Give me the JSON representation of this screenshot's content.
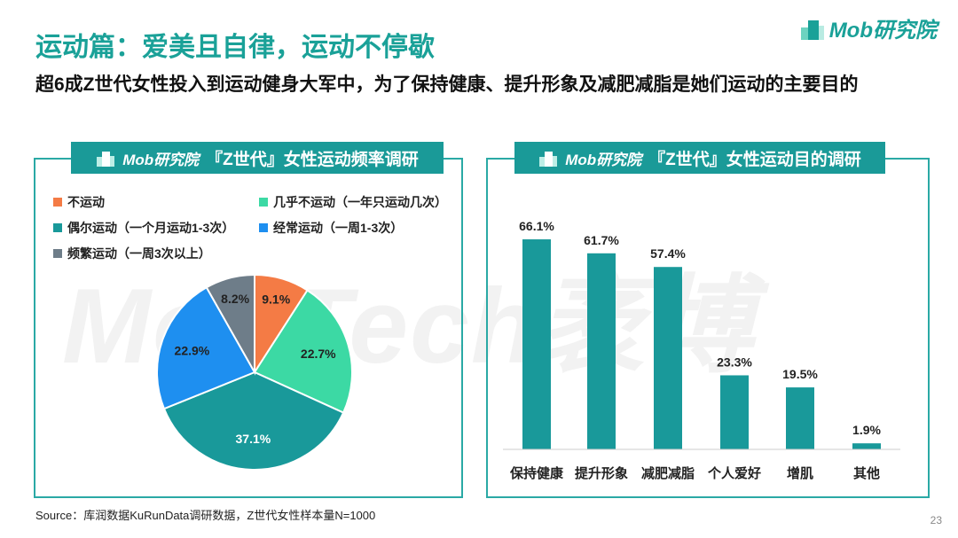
{
  "title": "运动篇：爱美且自律，运动不停歇",
  "subtitle": "超6成Z世代女性投入到运动健身大军中，为了保持健康、提升形象及减肥减脂是她们运动的主要目的",
  "logo": {
    "brand": "Mob研究院"
  },
  "watermark": "MobTech袤博",
  "left_panel": {
    "brand": "Mob研究院",
    "title": "『Z世代』女性运动频率调研"
  },
  "right_panel": {
    "brand": "Mob研究院",
    "title": "『Z世代』女性运动目的调研"
  },
  "source": "Source：库润数据KuRunData调研数据，Z世代女性样本量N=1000",
  "page_number": "23",
  "chart_data": [
    {
      "type": "pie",
      "start": "top",
      "direction": "clockwise",
      "legend_position": "top",
      "slices": [
        {
          "name": "不运动",
          "value": 9.1,
          "label": "9.1%",
          "color": "#f47b45"
        },
        {
          "name": "几乎不运动（一年只运动几次）",
          "value": 22.7,
          "label": "22.7%",
          "color": "#3cd9a4"
        },
        {
          "name": "偶尔运动（一个月运动1-3次）",
          "value": 37.1,
          "label": "37.1%",
          "color": "#19999a"
        },
        {
          "name": "经常运动（一周1-3次）",
          "value": 22.9,
          "label": "22.9%",
          "color": "#1e8ff0"
        },
        {
          "name": "频繁运动（一周3次以上）",
          "value": 8.2,
          "label": "8.2%",
          "color": "#6e7d89"
        }
      ]
    },
    {
      "type": "bar",
      "categories": [
        "保持健康",
        "提升形象",
        "减肥减脂",
        "个人爱好",
        "增肌",
        "其他"
      ],
      "values": [
        66.1,
        61.7,
        57.4,
        23.3,
        19.5,
        1.9
      ],
      "labels": [
        "66.1%",
        "61.7%",
        "57.4%",
        "23.3%",
        "19.5%",
        "1.9%"
      ],
      "color": "#19999a",
      "grid": false
    }
  ]
}
